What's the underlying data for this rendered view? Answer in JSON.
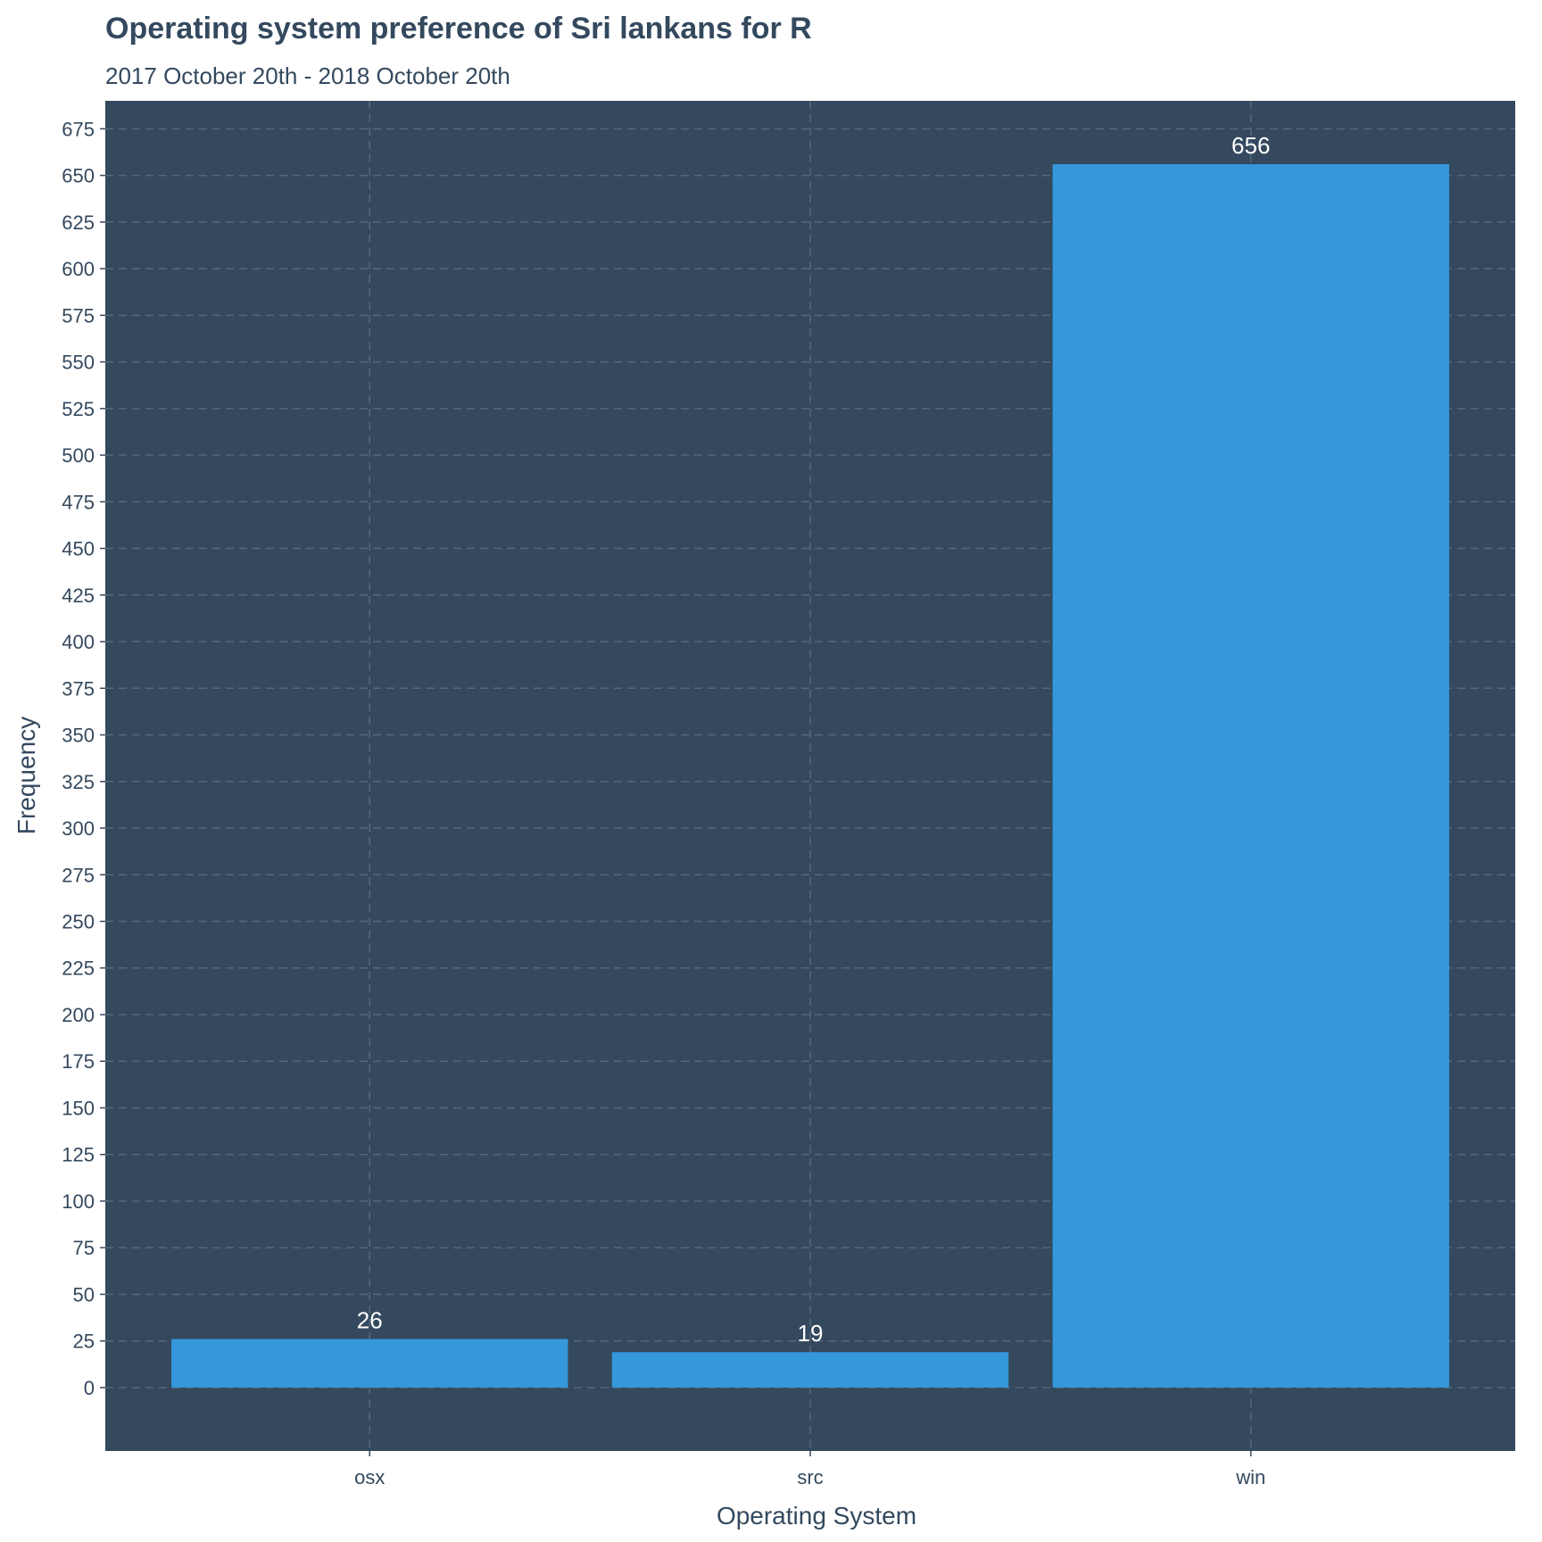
{
  "chart_data": {
    "type": "bar",
    "title": "Operating system preference of Sri lankans for R",
    "subtitle": "2017 October 20th - 2018 October 20th",
    "xlabel": "Operating System",
    "ylabel": "Frequency",
    "categories": [
      "osx",
      "src",
      "win"
    ],
    "values": [
      26,
      19,
      656
    ],
    "ylim": [
      -34,
      690
    ],
    "yticks": [
      0,
      25,
      50,
      75,
      100,
      125,
      150,
      175,
      200,
      225,
      250,
      275,
      300,
      325,
      350,
      375,
      400,
      425,
      450,
      475,
      500,
      525,
      550,
      575,
      600,
      625,
      650,
      675
    ],
    "grid": true,
    "colors": {
      "panel": "#34495e",
      "bar": "#3498db",
      "text": "#34495e",
      "label": "#ffffff",
      "grid": "#55677c"
    }
  }
}
